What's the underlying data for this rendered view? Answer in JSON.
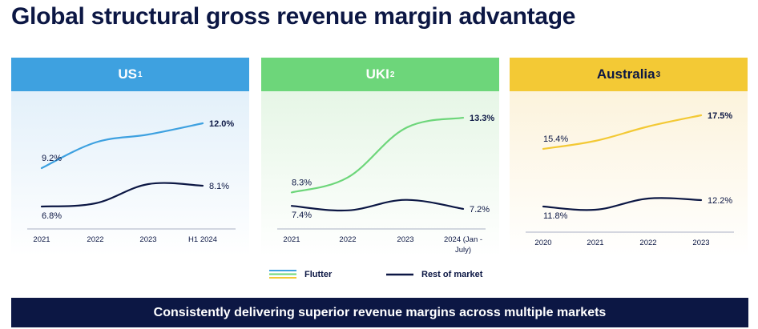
{
  "page": {
    "title": "Global structural gross revenue margin advantage",
    "banner": "Consistently delivering superior revenue margins across multiple markets"
  },
  "legend": {
    "flutter": "Flutter",
    "rest": "Rest of market"
  },
  "colors": {
    "navy": "#0c1744",
    "us_header": "#3ea1e0",
    "uki_header": "#6dd67a",
    "au_header": "#f3c935",
    "us_bg": "#e3f0fa",
    "uki_bg": "#e6f6e6",
    "au_bg": "#fcf3dc",
    "us_line": "#3ea1e0",
    "uki_line": "#6dd67a",
    "au_line": "#f3c935"
  },
  "panels": [
    {
      "key": "us",
      "label": "US",
      "sup": "1",
      "categories": [
        "2021",
        "2022",
        "2023",
        "H1 2024"
      ],
      "flutter_start_label": "9.2%",
      "flutter_end_label": "12.0%",
      "rest_start_label": "6.8%",
      "rest_end_label": "8.1%"
    },
    {
      "key": "uki",
      "label": "UKI",
      "sup": "2",
      "categories": [
        "2021",
        "2022",
        "2023",
        "2024 (Jan -",
        "July)"
      ],
      "flutter_start_label": "8.3%",
      "flutter_end_label": "13.3%",
      "rest_start_label": "7.4%",
      "rest_end_label": "7.2%"
    },
    {
      "key": "au",
      "label": "Australia",
      "sup": "3",
      "categories": [
        "2020",
        "2021",
        "2022",
        "2023"
      ],
      "flutter_start_label": "15.4%",
      "flutter_end_label": "17.5%",
      "rest_start_label": "11.8%",
      "rest_end_label": "12.2%"
    }
  ],
  "chart_data": [
    {
      "type": "line",
      "title": "US",
      "categories": [
        "2021",
        "2022",
        "2023",
        "H1 2024"
      ],
      "series": [
        {
          "name": "Flutter",
          "values": [
            9.2,
            10.8,
            11.3,
            12.0
          ]
        },
        {
          "name": "Rest of market",
          "values": [
            6.8,
            7.0,
            8.2,
            8.1
          ]
        }
      ],
      "ylim": [
        6,
        13
      ]
    },
    {
      "type": "line",
      "title": "UKI",
      "categories": [
        "2021",
        "2022",
        "2023",
        "2024 (Jan - July)"
      ],
      "series": [
        {
          "name": "Flutter",
          "values": [
            8.3,
            9.3,
            12.6,
            13.3
          ]
        },
        {
          "name": "Rest of market",
          "values": [
            7.4,
            7.1,
            7.8,
            7.2
          ]
        }
      ],
      "ylim": [
        6.5,
        14
      ]
    },
    {
      "type": "line",
      "title": "Australia",
      "categories": [
        "2020",
        "2021",
        "2022",
        "2023"
      ],
      "series": [
        {
          "name": "Flutter",
          "values": [
            15.4,
            15.9,
            16.8,
            17.5
          ]
        },
        {
          "name": "Rest of market",
          "values": [
            11.8,
            11.6,
            12.3,
            12.2
          ]
        }
      ],
      "ylim": [
        11,
        18
      ]
    }
  ]
}
